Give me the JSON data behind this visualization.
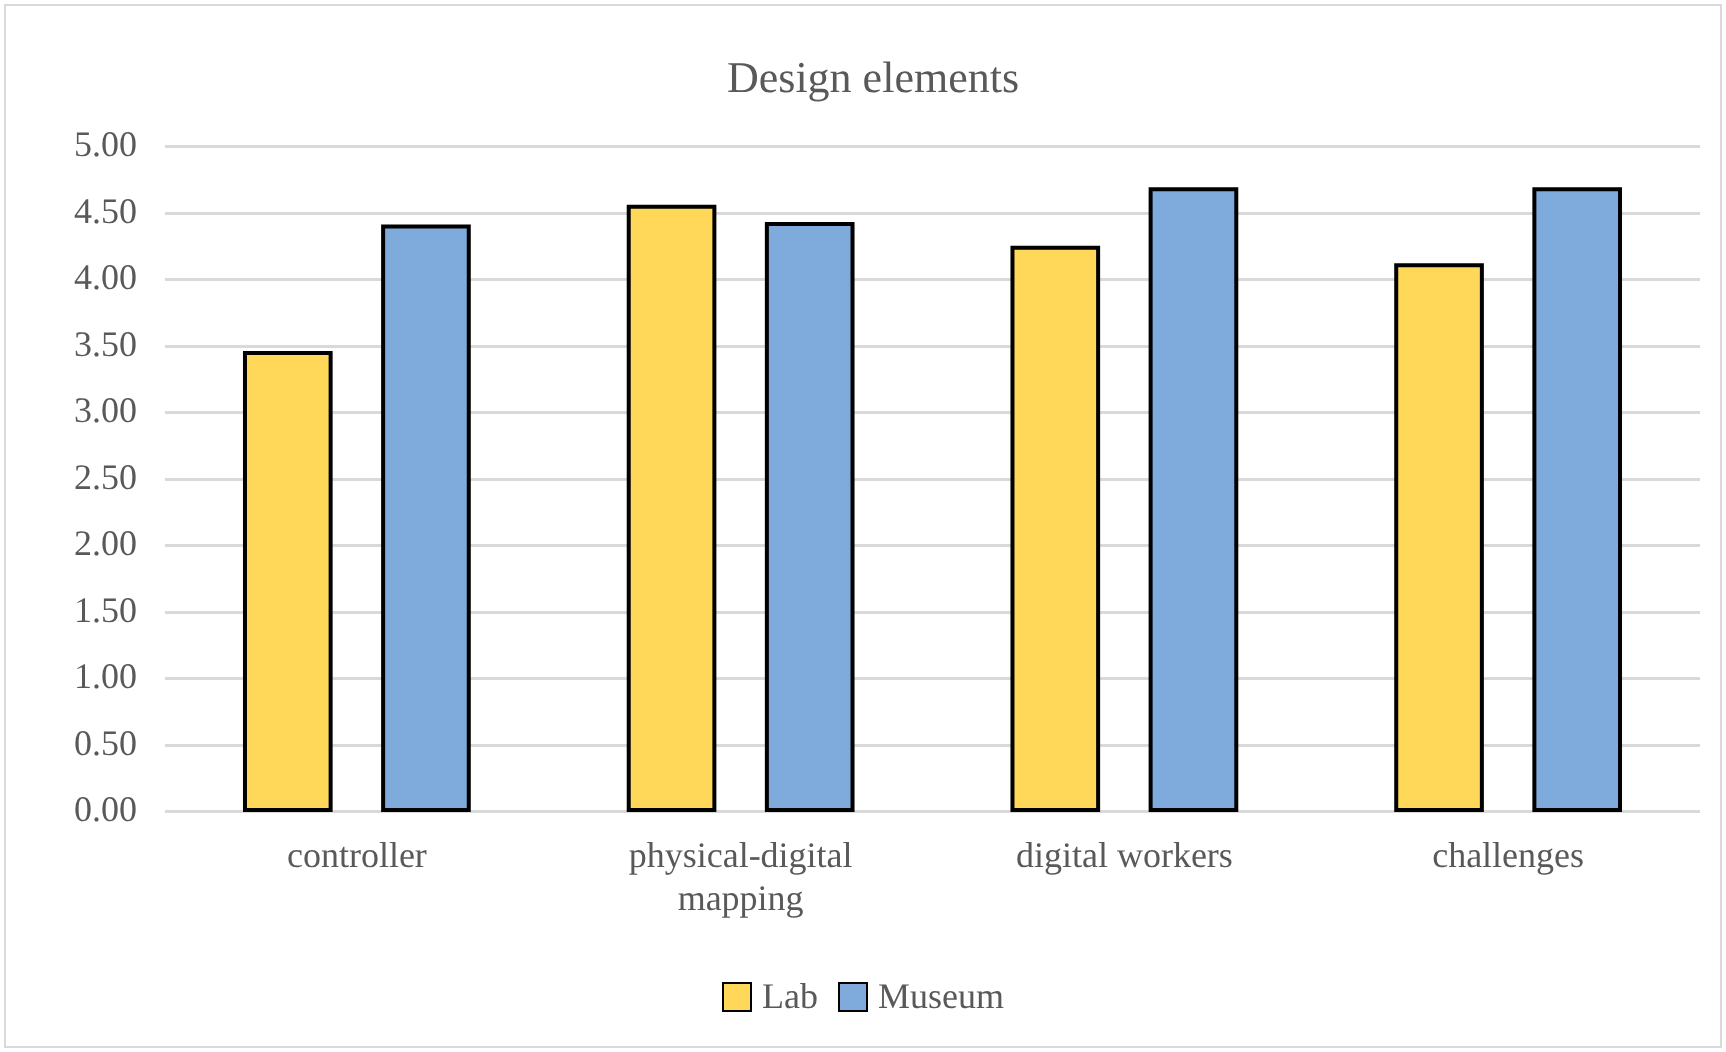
{
  "chart_data": {
    "type": "bar",
    "title": "Design elements",
    "categories": [
      "controller",
      "physical-digital mapping",
      "digital workers",
      "challenges"
    ],
    "series": [
      {
        "name": "Lab",
        "color": "#ffd85a",
        "values": [
          3.45,
          4.55,
          4.24,
          4.11
        ]
      },
      {
        "name": "Museum",
        "color": "#7eaadc",
        "values": [
          4.4,
          4.42,
          4.68,
          4.68
        ]
      }
    ],
    "ylim": [
      0,
      5
    ],
    "yticks": [
      {
        "value": 0,
        "label": "0.00"
      },
      {
        "value": 0.5,
        "label": "0.50"
      },
      {
        "value": 1,
        "label": "1.00"
      },
      {
        "value": 1.5,
        "label": "1.50"
      },
      {
        "value": 2,
        "label": "2.00"
      },
      {
        "value": 2.5,
        "label": "2.50"
      },
      {
        "value": 3,
        "label": "3.00"
      },
      {
        "value": 3.5,
        "label": "3.50"
      },
      {
        "value": 4,
        "label": "4.00"
      },
      {
        "value": 4.5,
        "label": "4.50"
      },
      {
        "value": 5,
        "label": "5.00"
      }
    ],
    "grid": "y",
    "legend": "bottom"
  }
}
